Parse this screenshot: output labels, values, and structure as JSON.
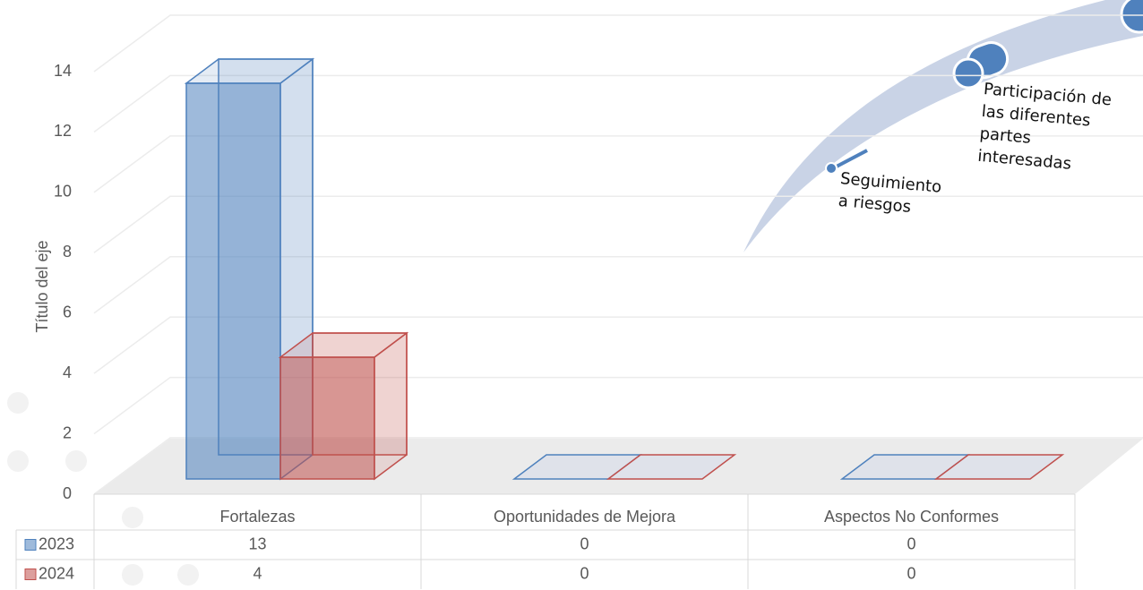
{
  "chart_data": {
    "type": "bar3d",
    "y_axis_title": "Título del eje",
    "categories": [
      "Fortalezas",
      "Oportunidades de Mejora",
      "Aspectos No Conformes"
    ],
    "series": [
      {
        "name": "2023",
        "color": "#4f81bd",
        "values": [
          13,
          0,
          0
        ]
      },
      {
        "name": "2024",
        "color": "#c0504d",
        "values": [
          4,
          0,
          0
        ]
      }
    ],
    "ylim": [
      0,
      14
    ],
    "yticks": [
      0,
      2,
      4,
      6,
      8,
      10,
      12,
      14
    ],
    "grid": true,
    "annotations": [
      [
        "Participación de",
        "las diferentes",
        "partes",
        "interesadas"
      ],
      [
        "Seguimiento",
        "a riesgos"
      ]
    ]
  }
}
